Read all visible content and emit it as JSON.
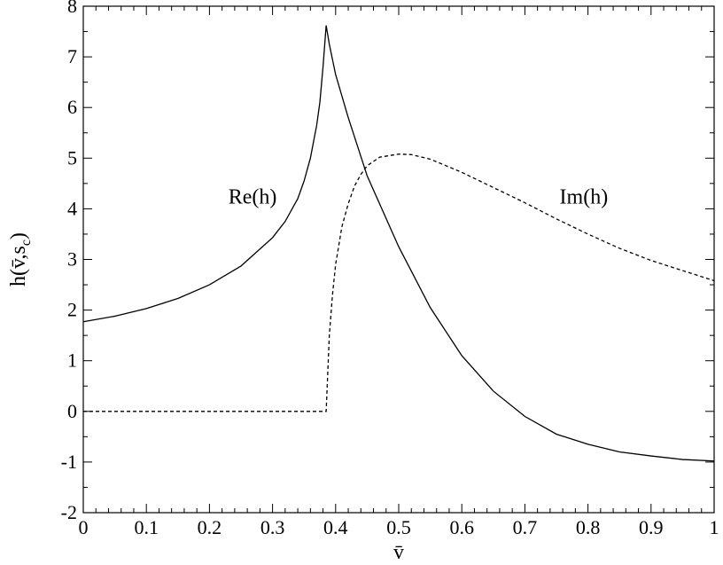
{
  "chart_data": {
    "type": "line",
    "xlabel": "v̄",
    "ylabel": "h(v̄,s",
    "ylabel_sub": "c",
    "ylabel_close": ")",
    "xlim": [
      0,
      1
    ],
    "ylim": [
      -2,
      8
    ],
    "x_ticks": [
      0,
      0.1,
      0.2,
      0.3,
      0.4,
      0.5,
      0.6,
      0.7,
      0.8,
      0.9,
      1
    ],
    "x_tick_labels": [
      "0",
      "0.1",
      "0.2",
      "0.3",
      "0.4",
      "0.5",
      "0.6",
      "0.7",
      "0.8",
      "0.9",
      "1"
    ],
    "y_ticks": [
      -2,
      -1,
      0,
      1,
      2,
      3,
      4,
      5,
      6,
      7,
      8
    ],
    "y_tick_labels": [
      "-2",
      "-1",
      "0",
      "1",
      "2",
      "3",
      "4",
      "5",
      "6",
      "7",
      "8"
    ],
    "grid": false,
    "series": [
      {
        "name": "Re(h)",
        "style": "solid",
        "color": "#000000",
        "x": [
          0,
          0.05,
          0.1,
          0.15,
          0.2,
          0.25,
          0.3,
          0.32,
          0.34,
          0.35,
          0.36,
          0.37,
          0.375,
          0.38,
          0.385,
          0.39,
          0.4,
          0.42,
          0.45,
          0.5,
          0.55,
          0.6,
          0.65,
          0.7,
          0.75,
          0.8,
          0.85,
          0.9,
          0.95,
          1.0
        ],
        "y": [
          1.77,
          1.88,
          2.03,
          2.23,
          2.5,
          2.87,
          3.43,
          3.75,
          4.2,
          4.55,
          5.0,
          5.65,
          6.1,
          6.8,
          7.62,
          7.25,
          6.65,
          5.8,
          4.65,
          3.25,
          2.05,
          1.1,
          0.4,
          -0.1,
          -0.45,
          -0.65,
          -0.8,
          -0.88,
          -0.95,
          -0.98
        ]
      },
      {
        "name": "Im(h)",
        "style": "dashed",
        "color": "#000000",
        "x": [
          0,
          0.1,
          0.2,
          0.3,
          0.385,
          0.386,
          0.39,
          0.395,
          0.4,
          0.41,
          0.42,
          0.43,
          0.44,
          0.45,
          0.47,
          0.5,
          0.52,
          0.55,
          0.6,
          0.65,
          0.7,
          0.75,
          0.8,
          0.85,
          0.9,
          0.95,
          1.0
        ],
        "y": [
          0,
          0,
          0,
          0,
          0,
          0.3,
          1.5,
          2.3,
          2.9,
          3.65,
          4.1,
          4.45,
          4.68,
          4.85,
          5.02,
          5.08,
          5.07,
          4.98,
          4.72,
          4.42,
          4.12,
          3.8,
          3.5,
          3.22,
          2.98,
          2.78,
          2.58
        ]
      }
    ],
    "annotations": [
      {
        "text": "Re(h)",
        "x": 0.23,
        "y": 4.1
      },
      {
        "text": "Im(h)",
        "x": 0.755,
        "y": 4.1
      }
    ]
  }
}
